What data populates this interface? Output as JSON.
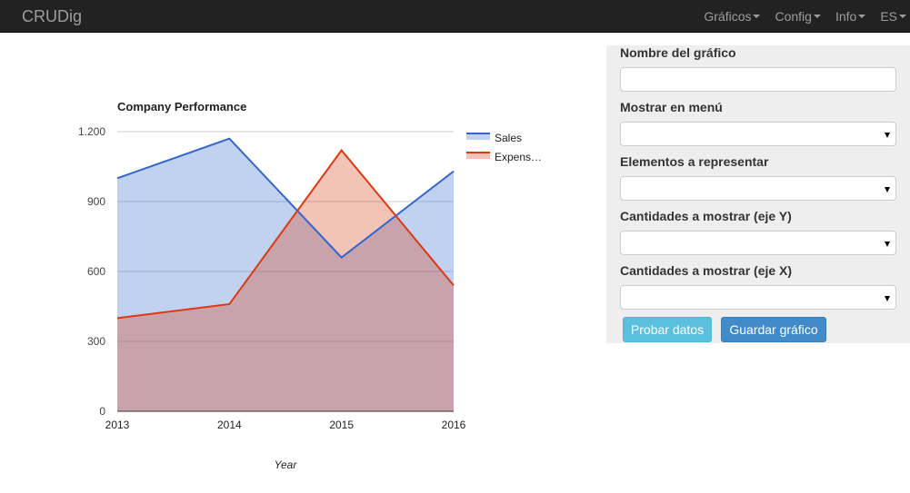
{
  "navbar": {
    "brand": "CRUDig",
    "items": [
      {
        "label": "Gráficos"
      },
      {
        "label": "Config"
      },
      {
        "label": "Info"
      },
      {
        "label": "ES"
      }
    ]
  },
  "form": {
    "nombre_label": "Nombre del gráfico",
    "nombre_value": "",
    "menu_label": "Mostrar en menú",
    "menu_value": "",
    "elementos_label": "Elementos a representar",
    "elementos_value": "",
    "eje_y_label": "Cantidades a mostrar (eje Y)",
    "eje_y_value": "",
    "eje_x_label": "Cantidades a mostrar (eje X)",
    "eje_x_value": "",
    "probar_label": "Probar datos",
    "guardar_label": "Guardar gráfico"
  },
  "colors": {
    "navbar_bg": "#222222",
    "panel_bg": "#eeeeee",
    "btn_info": "#5bc0de",
    "btn_primary": "#428bca",
    "sales": "#3366cc",
    "expenses": "#dc3912"
  },
  "chart_data": {
    "type": "area",
    "title": "Company Performance",
    "xlabel": "Year",
    "ylabel": "",
    "categories": [
      "2013",
      "2014",
      "2015",
      "2016"
    ],
    "series": [
      {
        "name": "Sales",
        "values": [
          1000,
          1170,
          660,
          1030
        ],
        "color": "#3366cc"
      },
      {
        "name": "Expens…",
        "values": [
          400,
          460,
          1120,
          540
        ],
        "color": "#dc3912"
      }
    ],
    "ylim": [
      0,
      1200
    ],
    "yticks": [
      0,
      300,
      600,
      900,
      1200
    ],
    "ytick_labels": [
      "0",
      "300",
      "600",
      "900",
      "1.200"
    ],
    "grid": true,
    "legend_position": "right"
  }
}
